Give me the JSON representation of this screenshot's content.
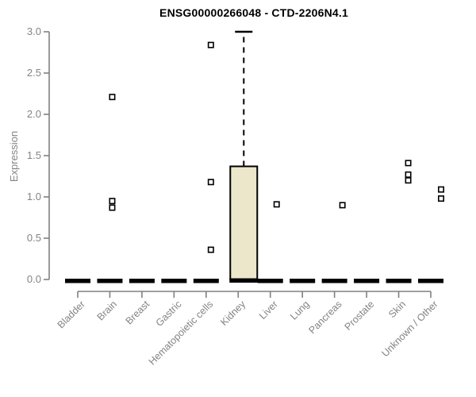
{
  "page": {
    "background": "#ffffff"
  },
  "chart_data": {
    "type": "box",
    "title": "ENSG00000266048 - CTD-2206N4.1",
    "xlabel": "",
    "ylabel": "Expression",
    "ylim": [
      0,
      3
    ],
    "ytick_values": [
      0,
      0.5,
      1,
      1.5,
      2,
      2.5,
      3
    ],
    "ytick_labels": [
      "0.0",
      "0.5",
      "1.0",
      "1.5",
      "2.0",
      "2.5",
      "3.0"
    ],
    "grid": false,
    "legend": null,
    "categories": [
      "Bladder",
      "Brain",
      "Breast",
      "Gastric",
      "Hematopoietic cells",
      "Kidney",
      "Liver",
      "Lung",
      "Pancreas",
      "Prostate",
      "Skin",
      "Unknown / Other"
    ],
    "boxes": [
      {
        "category": "Bladder",
        "q1": 0,
        "median": 0,
        "q3": 0,
        "whisker_low": 0,
        "whisker_high": 0,
        "outliers": []
      },
      {
        "category": "Brain",
        "q1": 0,
        "median": 0,
        "q3": 0,
        "whisker_low": 0,
        "whisker_high": 0,
        "outliers": [
          2.21,
          0.95,
          0.87
        ]
      },
      {
        "category": "Breast",
        "q1": 0,
        "median": 0,
        "q3": 0,
        "whisker_low": 0,
        "whisker_high": 0,
        "outliers": []
      },
      {
        "category": "Gastric",
        "q1": 0,
        "median": 0,
        "q3": 0,
        "whisker_low": 0,
        "whisker_high": 0,
        "outliers": []
      },
      {
        "category": "Hematopoietic cells",
        "q1": 0,
        "median": 0,
        "q3": 0,
        "whisker_low": 0,
        "whisker_high": 0,
        "outliers": [
          2.84,
          1.18,
          0.36
        ]
      },
      {
        "category": "Kidney",
        "q1": 0,
        "median": 0,
        "q3": 1.37,
        "whisker_low": 0,
        "whisker_high": 3.0,
        "outliers": []
      },
      {
        "category": "Liver",
        "q1": 0,
        "median": 0,
        "q3": 0,
        "whisker_low": 0,
        "whisker_high": 0,
        "outliers": [
          0.91
        ]
      },
      {
        "category": "Lung",
        "q1": 0,
        "median": 0,
        "q3": 0,
        "whisker_low": 0,
        "whisker_high": 0,
        "outliers": []
      },
      {
        "category": "Pancreas",
        "q1": 0,
        "median": 0,
        "q3": 0,
        "whisker_low": 0,
        "whisker_high": 0,
        "outliers": [
          0.9
        ]
      },
      {
        "category": "Prostate",
        "q1": 0,
        "median": 0,
        "q3": 0,
        "whisker_low": 0,
        "whisker_high": 0,
        "outliers": []
      },
      {
        "category": "Skin",
        "q1": 0,
        "median": 0,
        "q3": 0,
        "whisker_low": 0,
        "whisker_high": 0,
        "outliers": [
          1.41,
          1.27,
          1.2
        ]
      },
      {
        "category": "Unknown / Other",
        "q1": 0,
        "median": 0,
        "q3": 0,
        "whisker_low": 0,
        "whisker_high": 0,
        "outliers": [
          1.09,
          0.98
        ]
      }
    ],
    "colors": {
      "box_fill": "#ECE7CB",
      "box_border": "#000000",
      "median": "#000000",
      "outlier": "#000000",
      "axis": "#808080",
      "tick_text": "#838383",
      "title": "#000000"
    }
  }
}
